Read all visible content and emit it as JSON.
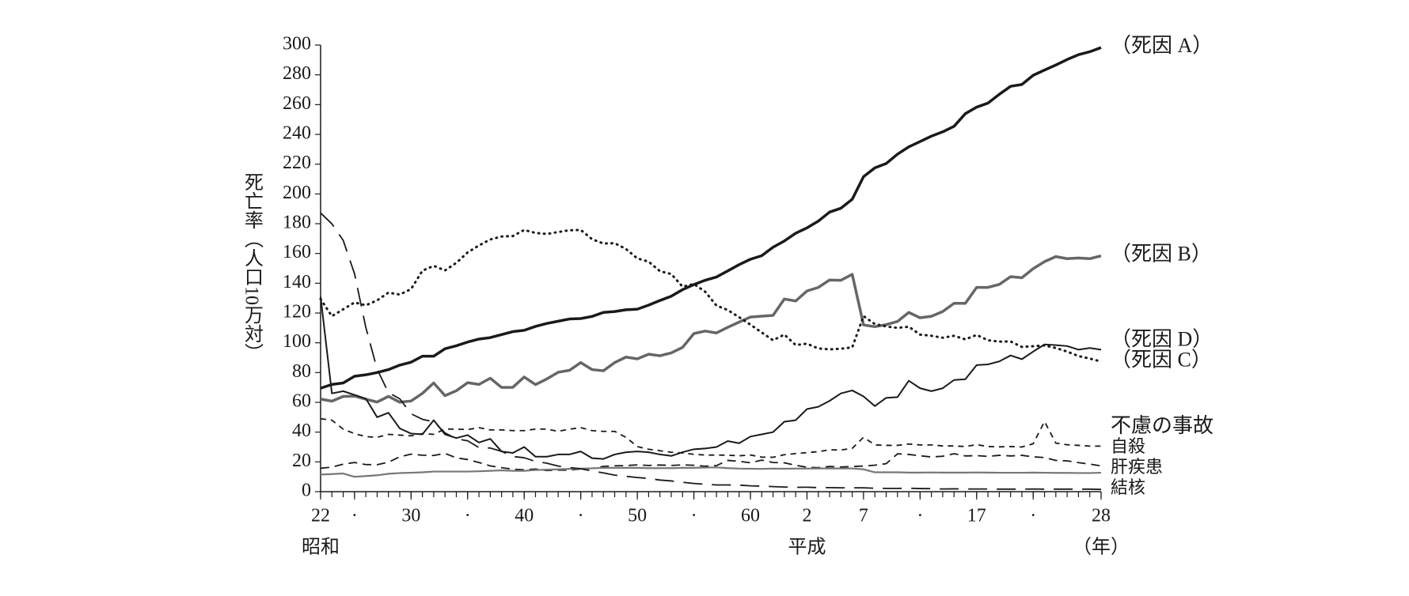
{
  "chart_data": {
    "type": "line",
    "y_label": "死亡率（人口10万対）",
    "x": [
      1947,
      1948,
      1949,
      1950,
      1951,
      1952,
      1953,
      1954,
      1955,
      1956,
      1957,
      1958,
      1959,
      1960,
      1961,
      1962,
      1963,
      1964,
      1965,
      1966,
      1967,
      1968,
      1969,
      1970,
      1971,
      1972,
      1973,
      1974,
      1975,
      1976,
      1977,
      1978,
      1979,
      1980,
      1981,
      1982,
      1983,
      1984,
      1985,
      1986,
      1987,
      1988,
      1989,
      1990,
      1991,
      1992,
      1993,
      1994,
      1995,
      1996,
      1997,
      1998,
      1999,
      2000,
      2001,
      2002,
      2003,
      2004,
      2005,
      2006,
      2007,
      2008,
      2009,
      2010,
      2011,
      2012,
      2013,
      2014,
      2015,
      2016
    ],
    "xlim": [
      1947,
      2016
    ],
    "xticks": [
      {
        "value": 1947,
        "label": "22"
      },
      {
        "value": 1950,
        "label": "·"
      },
      {
        "value": 1955,
        "label": "30"
      },
      {
        "value": 1960,
        "label": "·"
      },
      {
        "value": 1965,
        "label": "40"
      },
      {
        "value": 1970,
        "label": "·"
      },
      {
        "value": 1975,
        "label": "50"
      },
      {
        "value": 1980,
        "label": "·"
      },
      {
        "value": 1985,
        "label": "60"
      },
      {
        "value": 1990,
        "label": "2"
      },
      {
        "value": 1995,
        "label": "7"
      },
      {
        "value": 2000,
        "label": "·"
      },
      {
        "value": 2005,
        "label": "17"
      },
      {
        "value": 2010,
        "label": "·"
      },
      {
        "value": 2016,
        "label": "28"
      }
    ],
    "annotations": [
      {
        "text": "昭和",
        "x": 1947
      },
      {
        "text": "平成",
        "x": 1990
      },
      {
        "text": "（年）",
        "x": 2016
      }
    ],
    "ylim": [
      0,
      300
    ],
    "yticks": [
      0,
      20,
      40,
      60,
      80,
      100,
      120,
      140,
      160,
      180,
      200,
      220,
      240,
      260,
      280,
      300
    ],
    "grid": false,
    "series": [
      {
        "name": "（死因 A）",
        "color": "#1a1a1a",
        "style": "solid",
        "width": 3.5,
        "values": [
          69.5,
          72,
          73,
          77.5,
          78.5,
          80,
          82,
          85,
          87,
          91,
          91,
          96,
          98,
          100.5,
          102.5,
          103.5,
          105.5,
          107.5,
          108.4,
          111,
          113,
          114.5,
          116,
          116.3,
          117.7,
          120.4,
          121,
          122.2,
          122.6,
          125.3,
          128.4,
          131.3,
          135.7,
          139.1,
          142,
          144.2,
          148.3,
          152.5,
          156.1,
          158.5,
          164.2,
          168.4,
          173.6,
          177.2,
          181.7,
          187.8,
          190.4,
          196.4,
          211.6,
          217.5,
          220.4,
          226.7,
          231.6,
          235.2,
          238.8,
          241.7,
          245.4,
          253.9,
          258.3,
          261,
          266.9,
          272.3,
          273.5,
          279.7,
          283.2,
          286.6,
          290.3,
          293.5,
          295.5,
          298.3
        ]
      },
      {
        "name": "（死因 B）",
        "color": "#666666",
        "style": "solid",
        "width": 3.5,
        "values": [
          62.2,
          60.8,
          64,
          64.2,
          62.1,
          60.2,
          64,
          60.1,
          60.9,
          66,
          73,
          64.5,
          67.8,
          73.2,
          72,
          76.2,
          70,
          70.1,
          77,
          71.9,
          75.7,
          80.2,
          81.5,
          86.7,
          82,
          81.2,
          86.7,
          90.4,
          89.2,
          92.3,
          91.3,
          93.2,
          96.9,
          106.2,
          107.9,
          106.6,
          110.4,
          113.9,
          117.3,
          117.9,
          118.4,
          129.4,
          128.1,
          134.8,
          137.2,
          142.2,
          142,
          146,
          112,
          110.8,
          112.2,
          114.3,
          120.4,
          116.8,
          117.8,
          121,
          126.5,
          126.5,
          137.2,
          137.2,
          139.2,
          144.4,
          143.7,
          149.8,
          154.5,
          157.9,
          156.5,
          157,
          156.5,
          158.4
        ]
      },
      {
        "name": "（死因 C）",
        "color": "#1a1a1a",
        "style": "dotted",
        "width": 3,
        "values": [
          129.4,
          117.9,
          122.5,
          127.1,
          125.2,
          128.5,
          133.7,
          132.4,
          136.1,
          148.4,
          151.7,
          148.6,
          153.7,
          160.7,
          165.4,
          169.4,
          171.4,
          171.7,
          175.8,
          173.8,
          173.1,
          174.4,
          175.6,
          175.8,
          169.6,
          166.7,
          166.9,
          163,
          156.7,
          154.5,
          148.1,
          146.2,
          137.7,
          139.5,
          134.3,
          125,
          122,
          117.2,
          112.2,
          106.9,
          101.7,
          105.5,
          98.5,
          99.4,
          96.2,
          95.6,
          96,
          96.9,
          117.9,
          112.6,
          111,
          110,
          110.8,
          105.5,
          104.7,
          103.4,
          104.7,
          102.3,
          105.3,
          101.7,
          100.8,
          100.9,
          97.2,
          97.7,
          98.2,
          96.5,
          94.1,
          91.1,
          89.4,
          87.4
        ]
      },
      {
        "name": "（死因 D）",
        "color": "#1a1a1a",
        "style": "solid",
        "width": 2,
        "values": [
          131,
          66,
          67.5,
          65,
          62.5,
          50,
          53,
          42.5,
          39,
          38.5,
          48,
          38.5,
          36,
          38,
          33,
          35.5,
          27,
          26,
          30,
          23.5,
          23.5,
          25,
          25,
          27,
          22.5,
          22,
          25,
          26.5,
          27,
          26.5,
          25,
          24,
          26.5,
          28.5,
          29,
          30,
          34,
          32.5,
          37,
          38.5,
          40,
          47,
          48,
          55.5,
          57,
          61,
          66,
          68,
          64,
          57.5,
          63,
          63.5,
          74.5,
          69.5,
          67.5,
          69.5,
          75,
          75.5,
          85,
          85.5,
          87.5,
          91.5,
          89,
          94.1,
          98.9,
          98.4,
          97.8,
          95.4,
          96.5,
          95.4
        ]
      },
      {
        "name": "不慮の事故",
        "color": "#1a1a1a",
        "style": "short-dashed",
        "width": 1.8,
        "values": [
          49,
          48,
          42,
          39,
          37,
          36.5,
          38.5,
          38,
          37.5,
          39,
          38.5,
          42,
          42,
          41.7,
          43,
          41.5,
          41.5,
          41,
          41,
          42,
          42,
          40.5,
          42,
          43,
          41,
          40.5,
          40.5,
          36.5,
          30.3,
          28.5,
          27.5,
          26.5,
          26,
          25.1,
          24.6,
          24.6,
          24.5,
          24.1,
          24.6,
          23.2,
          23.1,
          24.8,
          25.6,
          26.2,
          26.9,
          28.1,
          28,
          29.1,
          36.5,
          31.4,
          31.1,
          31.1,
          32,
          31.4,
          31.4,
          30.7,
          30.7,
          30.3,
          31.6,
          30.3,
          30.1,
          30.3,
          30,
          32.2,
          47.1,
          32.6,
          31.5,
          31.1,
          30.6,
          30.6
        ]
      },
      {
        "name": "自殺",
        "color": "#1a1a1a",
        "style": "dashed",
        "width": 1.8,
        "values": [
          15.7,
          16.5,
          18.5,
          19.6,
          18.2,
          18.1,
          19.8,
          23.4,
          25.2,
          24.5,
          24.3,
          25.7,
          22.7,
          21.6,
          19.6,
          17.3,
          16.1,
          15.1,
          14.7,
          15.2,
          14.2,
          14.5,
          14.5,
          15.3,
          15.6,
          17,
          17.4,
          17.5,
          18,
          17.6,
          17.9,
          17.6,
          18,
          17.7,
          17.1,
          17.5,
          21,
          20.4,
          19.4,
          21.2,
          19.6,
          19.4,
          17.7,
          16.4,
          16.1,
          16.9,
          16.6,
          16.9,
          17.2,
          17.8,
          18.8,
          25.4,
          25,
          24.1,
          23.3,
          23.8,
          25.5,
          24,
          24.2,
          23.7,
          24.4,
          24,
          24.4,
          23.4,
          22.9,
          21,
          20.7,
          19.5,
          18.5,
          17.3
        ]
      },
      {
        "name": "肝疾患",
        "color": "#777777",
        "style": "solid",
        "width": 2.2,
        "values": [
          11.5,
          11.8,
          12.2,
          10,
          10.5,
          11,
          12,
          12.5,
          12.7,
          13,
          13.5,
          13.5,
          13.5,
          13.5,
          13.7,
          14,
          14.3,
          14,
          14,
          14.5,
          14.8,
          15,
          15.3,
          15.5,
          15.7,
          16,
          16,
          16,
          16,
          15.8,
          15.8,
          15.8,
          16,
          16,
          16.2,
          16.3,
          15.8,
          15.5,
          15.4,
          15.3,
          15.5,
          15.4,
          15.5,
          15.5,
          15.6,
          15.6,
          15.6,
          15.6,
          15,
          13,
          13,
          13,
          12.8,
          12.8,
          12.9,
          12.8,
          12.8,
          12.8,
          12.9,
          12.8,
          12.7,
          12.7,
          12.7,
          12.8,
          12.7,
          12.6,
          12.6,
          12.5,
          12.5,
          12.7
        ]
      },
      {
        "name": "結核",
        "color": "#1a1a1a",
        "style": "long-dashed",
        "width": 1.8,
        "values": [
          187.2,
          179.9,
          168.8,
          146.4,
          110.3,
          82.2,
          66.5,
          62.4,
          52.3,
          48.6,
          46.9,
          39.5,
          35.5,
          34.2,
          29.6,
          29.3,
          27.1,
          23.6,
          22.8,
          20.3,
          19.1,
          17.2,
          16.2,
          15.4,
          13.9,
          12.6,
          11.1,
          10.3,
          9.5,
          8.9,
          7.8,
          7.2,
          6.3,
          5.5,
          5,
          4.5,
          4.5,
          4.4,
          3.9,
          3.7,
          3.4,
          3.1,
          2.9,
          3,
          2.7,
          2.7,
          2.6,
          2.6,
          2.6,
          2.3,
          2.2,
          2.2,
          2.3,
          2.1,
          2,
          1.8,
          1.9,
          1.8,
          1.8,
          1.8,
          1.7,
          1.7,
          1.7,
          1.8,
          1.7,
          1.7,
          1.7,
          1.7,
          1.7,
          1.5
        ]
      }
    ]
  }
}
